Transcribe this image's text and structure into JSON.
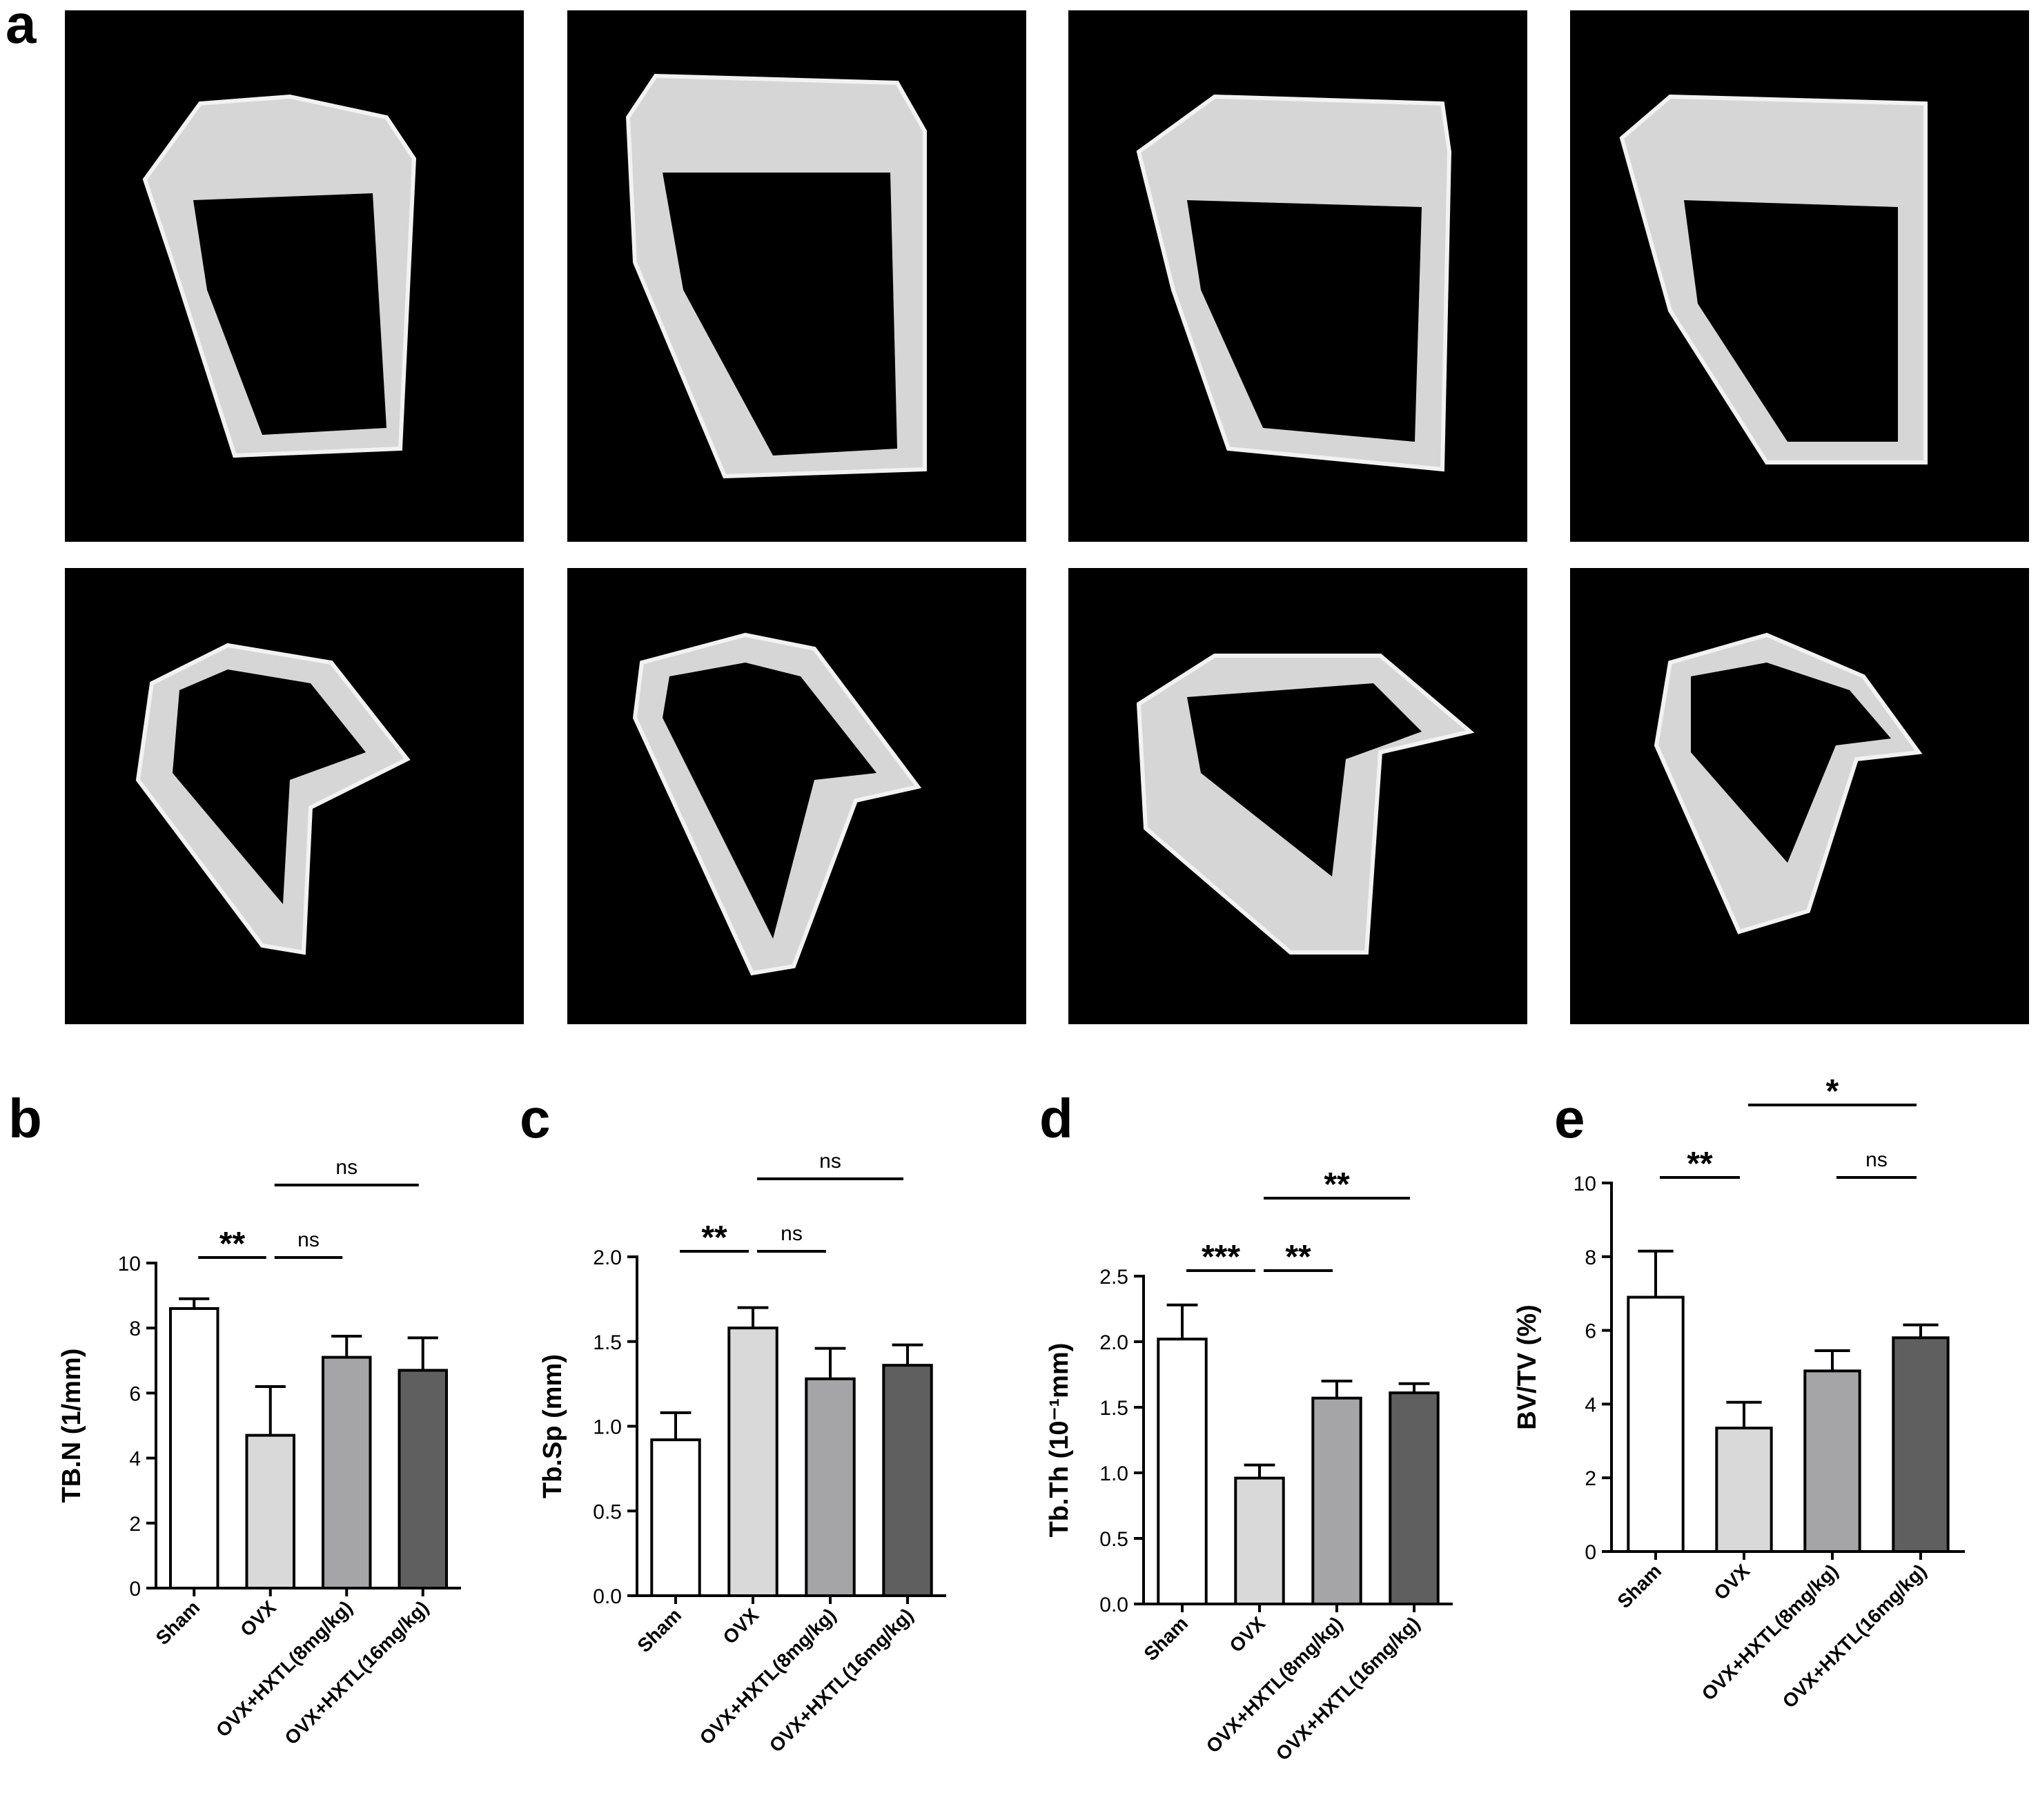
{
  "figure_label": "a",
  "chart_data": [
    {
      "type": "bar",
      "label": "b",
      "ylabel": "TB.N (1/mm)",
      "categories": [
        "Sham",
        "OVX",
        "OVX+HXTL(8mg/kg)",
        "OVX+HXTL(16mg/kg)"
      ],
      "values": [
        8.6,
        4.7,
        7.1,
        6.7
      ],
      "errors": [
        0.3,
        1.5,
        0.65,
        1.0
      ],
      "colors": [
        "#ffffff",
        "#d9d9d9",
        "#a5a5a8",
        "#5f5f5f"
      ],
      "ylim": [
        0,
        10
      ],
      "yticks": [
        0,
        2,
        4,
        6,
        8,
        10
      ],
      "annotations": [
        {
          "text": "**",
          "between": [
            0,
            1
          ]
        },
        {
          "text": "ns",
          "between": [
            1,
            2
          ]
        },
        {
          "text": "ns",
          "between": [
            1,
            3
          ]
        }
      ]
    },
    {
      "type": "bar",
      "label": "c",
      "ylabel": "Tb.Sp (mm)",
      "categories": [
        "Sham",
        "OVX",
        "OVX+HXTL(8mg/kg)",
        "OVX+HXTL(16mg/kg)"
      ],
      "values": [
        0.92,
        1.58,
        1.28,
        1.36
      ],
      "errors": [
        0.16,
        0.12,
        0.18,
        0.12
      ],
      "colors": [
        "#ffffff",
        "#d9d9d9",
        "#a5a5a8",
        "#5f5f5f"
      ],
      "ylim": [
        0,
        2
      ],
      "yticks": [
        {
          "value": 0,
          "label": "0.0"
        },
        0.5,
        {
          "value": 1,
          "label": "1.0"
        },
        1.5,
        {
          "value": 2,
          "label": "2.0"
        }
      ],
      "annotations": [
        {
          "text": "**",
          "between": [
            0,
            1
          ]
        },
        {
          "text": "ns",
          "between": [
            1,
            2
          ]
        },
        {
          "text": "ns",
          "between": [
            1,
            3
          ]
        }
      ]
    },
    {
      "type": "bar",
      "label": "d",
      "ylabel": "Tb.Th (10⁻¹mm)",
      "categories": [
        "Sham",
        "OVX",
        "OVX+HXTL(8mg/kg)",
        "OVX+HXTL(16mg/kg)"
      ],
      "values": [
        2.02,
        0.96,
        1.57,
        1.61
      ],
      "errors": [
        0.26,
        0.1,
        0.13,
        0.07
      ],
      "colors": [
        "#ffffff",
        "#d9d9d9",
        "#a5a5a8",
        "#5f5f5f"
      ],
      "ylim": [
        0,
        2.5
      ],
      "yticks": [
        {
          "value": 0,
          "label": "0.0"
        },
        0.5,
        {
          "value": 1,
          "label": "1.0"
        },
        1.5,
        {
          "value": 2,
          "label": "2.0"
        },
        2.5
      ],
      "annotations": [
        {
          "text": "***",
          "between": [
            0,
            1
          ]
        },
        {
          "text": "**",
          "between": [
            1,
            2
          ]
        },
        {
          "text": "**",
          "between": [
            1,
            3
          ]
        }
      ]
    },
    {
      "type": "bar",
      "label": "e",
      "ylabel": "BV/TV (%)",
      "categories": [
        "Sham",
        "OVX",
        "OVX+HXTL(8mg/kg)",
        "OVX+HXTL(16mg/kg)"
      ],
      "values": [
        6.9,
        3.35,
        4.9,
        5.8
      ],
      "errors": [
        1.25,
        0.7,
        0.55,
        0.35
      ],
      "colors": [
        "#ffffff",
        "#d9d9d9",
        "#a5a5a8",
        "#5f5f5f"
      ],
      "ylim": [
        0,
        10
      ],
      "yticks": [
        0,
        2,
        4,
        6,
        8,
        10
      ],
      "annotations": [
        {
          "text": "**",
          "between": [
            0,
            1
          ]
        },
        {
          "text": "ns",
          "between": [
            2,
            3
          ]
        },
        {
          "text": "*",
          "between": [
            1,
            3
          ]
        }
      ]
    }
  ]
}
